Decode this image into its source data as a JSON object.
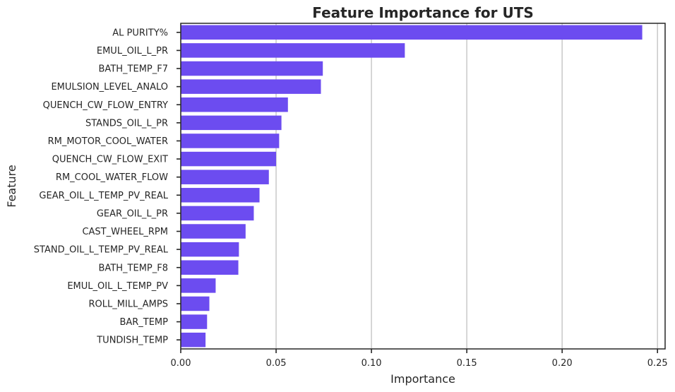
{
  "chart_data": {
    "type": "bar",
    "orientation": "horizontal",
    "title": "Feature Importance for UTS",
    "xlabel": "Importance",
    "ylabel": "Feature",
    "xlim": [
      0,
      0.254
    ],
    "xticks": [
      0.0,
      0.05,
      0.1,
      0.15,
      0.2,
      0.25
    ],
    "xtick_labels": [
      "0.00",
      "0.05",
      "0.10",
      "0.15",
      "0.20",
      "0.25"
    ],
    "grid": "x-major",
    "bar_color": "#6c4cf0",
    "categories": [
      "AL PURITY%",
      "EMUL_OIL_L_PR",
      "BATH_TEMP_F7",
      "EMULSION_LEVEL_ANALO",
      "QUENCH_CW_FLOW_ENTRY",
      "STANDS_OIL_L_PR",
      "RM_MOTOR_COOL_WATER",
      "QUENCH_CW_FLOW_EXIT",
      "RM_COOL_WATER_FLOW",
      "GEAR_OIL_L_TEMP_PV_REAL",
      "GEAR_OIL_L_PR",
      "CAST_WHEEL_RPM",
      "STAND_OIL_L_TEMP_PV_REAL",
      "BATH_TEMP_F8",
      "EMUL_OIL_L_TEMP_PV",
      "ROLL_MILL_AMPS",
      "BAR_TEMP",
      "TUNDISH_TEMP"
    ],
    "values": [
      0.242,
      0.1175,
      0.0745,
      0.0735,
      0.0562,
      0.0528,
      0.0516,
      0.05,
      0.0462,
      0.0413,
      0.0383,
      0.034,
      0.0305,
      0.0302,
      0.0183,
      0.015,
      0.0138,
      0.013
    ]
  }
}
